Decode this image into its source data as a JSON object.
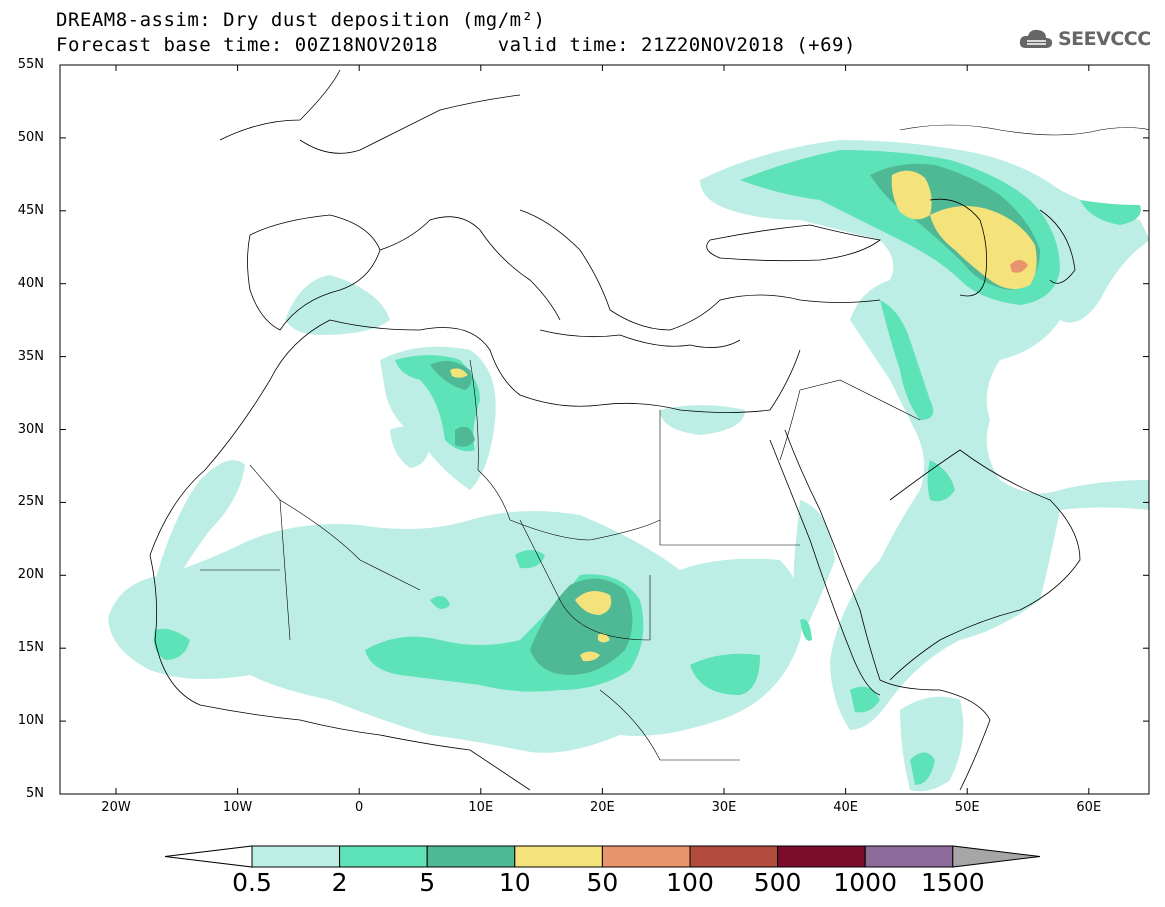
{
  "header": {
    "title": "DREAM8-assim: Dry dust deposition (mg/m²)",
    "subtitle": "Forecast base time: 00Z18NOV2018     valid time: 21Z20NOV2018 (+69)"
  },
  "logo": {
    "text": "SEEVCCC",
    "icon": "cloud-icon"
  },
  "axes": {
    "lat_labels": [
      "55N",
      "50N",
      "45N",
      "40N",
      "35N",
      "30N",
      "25N",
      "20N",
      "15N",
      "10N",
      "5N"
    ],
    "lon_labels": [
      "20W",
      "10W",
      "0",
      "10E",
      "20E",
      "30E",
      "40E",
      "50E",
      "60E"
    ]
  },
  "colorbar": {
    "labels": [
      "0.5",
      "2",
      "5",
      "10",
      "50",
      "100",
      "500",
      "1000",
      "1500"
    ],
    "colors": [
      "#bdeee6",
      "#5ee2b8",
      "#4fb996",
      "#f4e27a",
      "#e8946c",
      "#b24c3e",
      "#7c0c2c",
      "#8c6a9a",
      "#a6a6a6"
    ]
  }
}
